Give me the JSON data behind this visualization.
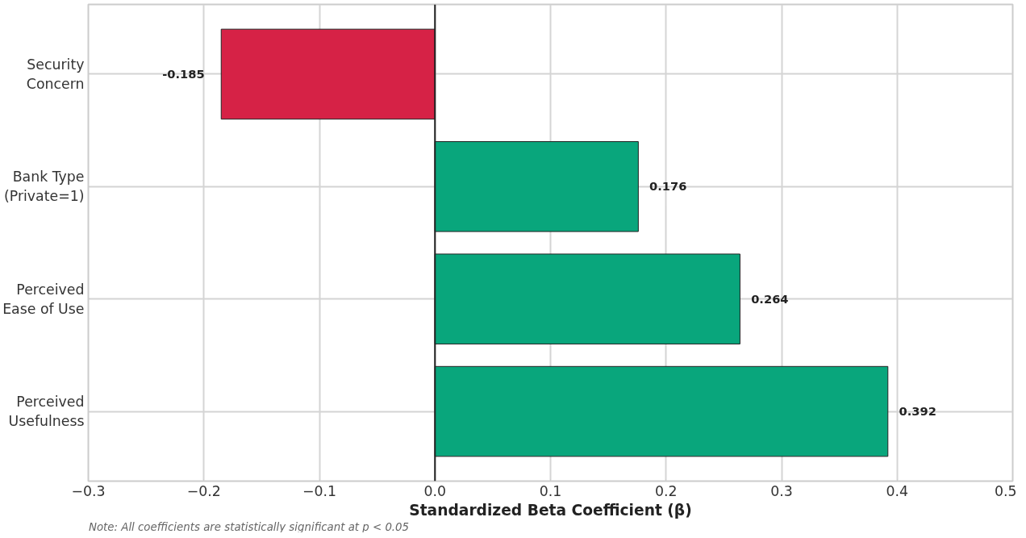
{
  "chart_data": {
    "type": "bar",
    "orientation": "horizontal",
    "categories": [
      "Security Concern",
      "Bank Type (Private=1)",
      "Perceived Ease of Use",
      "Perceived Usefulness"
    ],
    "values": [
      -0.185,
      0.176,
      0.264,
      0.392
    ],
    "colors": [
      "#d62246",
      "#09a67c",
      "#09a67c",
      "#09a67c"
    ],
    "xlabel": "Standardized Beta Coefficient (β)",
    "xlim": [
      -0.3,
      0.5
    ],
    "xticks": [
      {
        "value": -0.3,
        "label": "−0.3"
      },
      {
        "value": -0.2,
        "label": "−0.2"
      },
      {
        "value": -0.1,
        "label": "−0.1"
      },
      {
        "value": 0,
        "label": "0.0"
      },
      0.1,
      0.2,
      0.3,
      0.4,
      0.5
    ],
    "ref_lines": [
      {
        "axis": "x",
        "value": 0,
        "label": null,
        "color": "#222222"
      }
    ],
    "annotations": [
      "Note: All coefficients are statistically significant at p < 0.05"
    ],
    "data_labels": true,
    "grid": true
  }
}
